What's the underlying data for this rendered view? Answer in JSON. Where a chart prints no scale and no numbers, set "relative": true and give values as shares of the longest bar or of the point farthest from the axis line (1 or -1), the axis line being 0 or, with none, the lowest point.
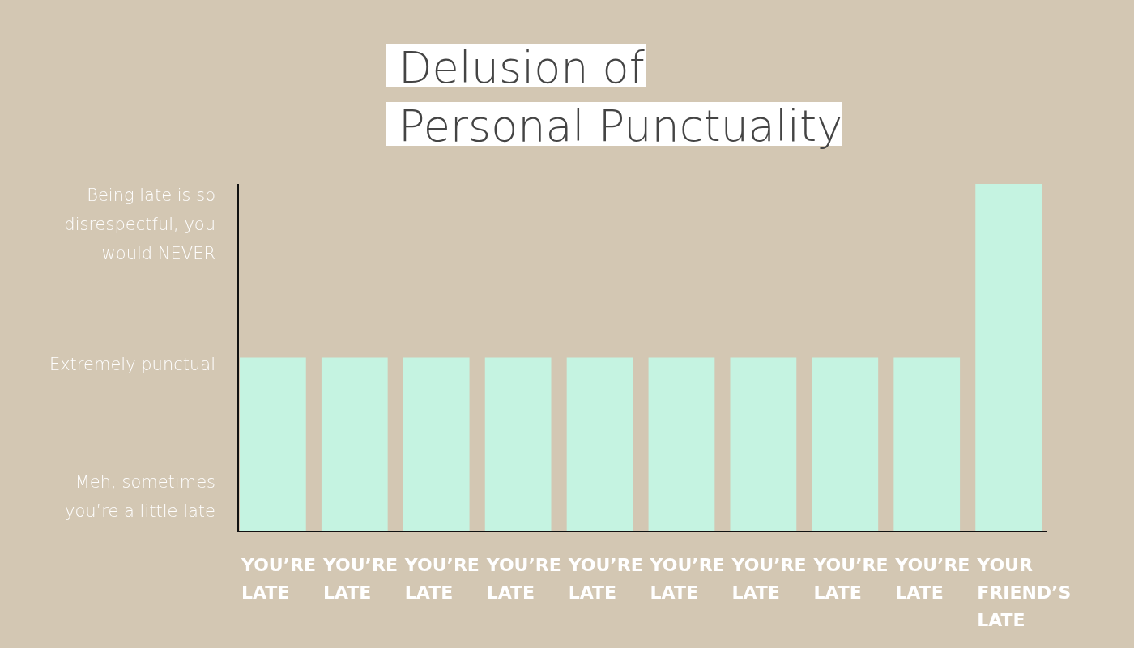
{
  "chart_data": {
    "type": "bar",
    "title": "Delusion of Personal Punctuality",
    "relative": true,
    "categories": [
      "YOU’RE LATE",
      "YOU’RE LATE",
      "YOU’RE LATE",
      "YOU’RE LATE",
      "YOU’RE LATE",
      "YOU’RE LATE",
      "YOU’RE LATE",
      "YOU’RE LATE",
      "YOU’RE LATE",
      "YOUR FRIEND’S LATE"
    ],
    "values": [
      0.5,
      0.5,
      0.5,
      0.5,
      0.5,
      0.5,
      0.5,
      0.5,
      0.5,
      1
    ],
    "color": "#c5f3e1",
    "annotations": [
      "Meh, sometimes you’re a little late",
      "Extremely punctual",
      "Being late is so disrespectful, you would NEVER"
    ]
  }
}
